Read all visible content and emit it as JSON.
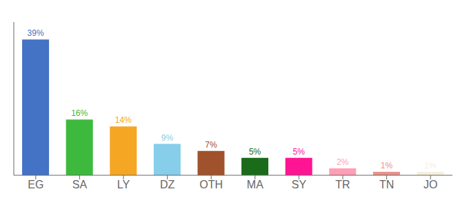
{
  "chart_data": {
    "type": "bar",
    "categories": [
      "EG",
      "SA",
      "LY",
      "DZ",
      "OTH",
      "MA",
      "SY",
      "TR",
      "TN",
      "JO"
    ],
    "values": [
      39,
      16,
      14,
      9,
      7,
      5,
      5,
      2,
      1,
      1
    ],
    "value_labels": [
      "39%",
      "16%",
      "14%",
      "9%",
      "7%",
      "5%",
      "5%",
      "2%",
      "1%",
      "1%"
    ],
    "data_labels": true,
    "colors": [
      "#4472c4",
      "#3dba3d",
      "#f5a623",
      "#87ceeb",
      "#a0522d",
      "#1a6b1a",
      "#ff1493",
      "#ff9eb5",
      "#e8928c",
      "#f5f0dc"
    ],
    "ylim": [
      0,
      44
    ],
    "tick_labels": "x",
    "grid": false
  }
}
